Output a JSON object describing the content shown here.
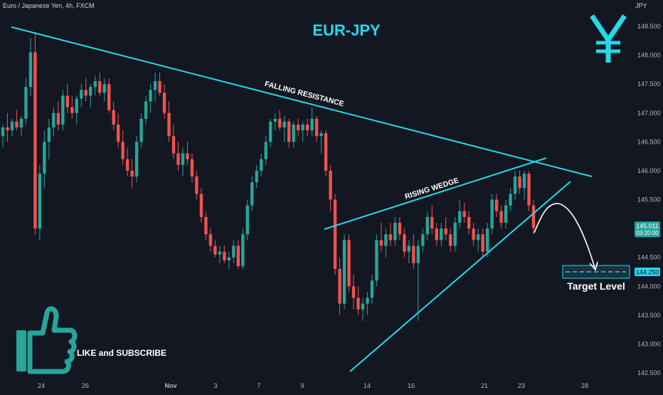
{
  "header": {
    "symbol_line": "Euro / Japanese Yen, 4h, FXCM",
    "currency_unit": "JPY"
  },
  "chart_data": {
    "type": "candlestick",
    "title": "EUR-JPY",
    "ylim": [
      142.4,
      148.7
    ],
    "y_ticks": [
      "148.500",
      "148.000",
      "147.500",
      "147.000",
      "146.500",
      "146.000",
      "145.500",
      "145.000",
      "144.500",
      "144.000",
      "143.500",
      "143.000",
      "142.500"
    ],
    "x_ticks": [
      "24",
      "26",
      "Nov",
      "3",
      "7",
      "9",
      "14",
      "16",
      "21",
      "23",
      "28"
    ],
    "current_price": "145.011",
    "countdown": "03:20:00",
    "target_price": "144.250",
    "colors": {
      "up": "#26a69a",
      "down": "#ef5350",
      "line": "#26d9e8",
      "text": "#ffffff"
    },
    "annotations": {
      "falling_resistance": "FALLING RESISTANCE",
      "rising_wedge": "RISING WEDGE",
      "target_level": "Target Level",
      "cta": "LIKE and SUBSCRIBE"
    },
    "trendlines": {
      "falling_resistance": [
        [
          148.6
        ],
        [
          145.92
        ]
      ],
      "wedge_top": [
        145.12,
        146.22
      ],
      "wedge_bottom": [
        142.55,
        145.85
      ]
    },
    "candles": [
      [
        146.6,
        146.8,
        146.4,
        146.75
      ],
      [
        146.75,
        147.0,
        146.5,
        146.7
      ],
      [
        146.7,
        146.9,
        146.6,
        146.85
      ],
      [
        146.85,
        147.05,
        146.7,
        146.75
      ],
      [
        146.75,
        146.95,
        146.6,
        146.9
      ],
      [
        146.9,
        147.6,
        146.8,
        147.45
      ],
      [
        147.45,
        148.3,
        147.3,
        148.05
      ],
      [
        148.05,
        148.4,
        144.9,
        145.0
      ],
      [
        145.0,
        146.1,
        144.8,
        145.95
      ],
      [
        145.95,
        146.7,
        145.7,
        146.5
      ],
      [
        146.5,
        146.9,
        146.2,
        146.75
      ],
      [
        146.75,
        147.1,
        146.6,
        147.0
      ],
      [
        147.0,
        147.2,
        146.7,
        146.8
      ],
      [
        146.8,
        147.4,
        146.7,
        147.3
      ],
      [
        147.3,
        147.5,
        147.0,
        147.1
      ],
      [
        147.1,
        147.3,
        146.9,
        147.0
      ],
      [
        147.0,
        147.3,
        146.8,
        147.25
      ],
      [
        147.25,
        147.5,
        147.1,
        147.4
      ],
      [
        147.4,
        147.6,
        147.2,
        147.3
      ],
      [
        147.3,
        147.5,
        147.1,
        147.45
      ],
      [
        147.45,
        147.65,
        147.3,
        147.55
      ],
      [
        147.55,
        147.7,
        147.3,
        147.35
      ],
      [
        147.35,
        147.6,
        147.2,
        147.5
      ],
      [
        147.5,
        147.6,
        147.0,
        147.05
      ],
      [
        147.05,
        147.2,
        146.7,
        146.8
      ],
      [
        146.8,
        147.0,
        146.4,
        146.5
      ],
      [
        146.5,
        146.7,
        146.1,
        146.2
      ],
      [
        146.2,
        146.4,
        145.9,
        146.0
      ],
      [
        146.0,
        146.2,
        145.7,
        145.9
      ],
      [
        145.9,
        146.6,
        145.8,
        146.5
      ],
      [
        146.5,
        147.0,
        146.4,
        146.9
      ],
      [
        146.9,
        147.3,
        146.8,
        147.2
      ],
      [
        147.2,
        147.5,
        147.0,
        147.4
      ],
      [
        147.4,
        147.7,
        147.2,
        147.55
      ],
      [
        147.55,
        147.7,
        147.3,
        147.35
      ],
      [
        147.35,
        147.5,
        146.9,
        147.0
      ],
      [
        147.0,
        147.2,
        146.5,
        146.6
      ],
      [
        146.6,
        146.8,
        146.2,
        146.3
      ],
      [
        146.3,
        146.5,
        146.0,
        146.1
      ],
      [
        146.1,
        146.4,
        145.9,
        146.3
      ],
      [
        146.3,
        146.5,
        146.1,
        146.2
      ],
      [
        146.2,
        146.3,
        145.8,
        145.9
      ],
      [
        145.9,
        146.0,
        145.5,
        145.6
      ],
      [
        145.6,
        145.7,
        145.1,
        145.2
      ],
      [
        145.2,
        145.3,
        144.8,
        144.9
      ],
      [
        144.9,
        145.0,
        144.6,
        144.7
      ],
      [
        144.7,
        144.8,
        144.5,
        144.55
      ],
      [
        144.55,
        144.7,
        144.4,
        144.6
      ],
      [
        144.6,
        144.7,
        144.4,
        144.45
      ],
      [
        144.45,
        144.6,
        144.3,
        144.5
      ],
      [
        144.5,
        144.8,
        144.4,
        144.7
      ],
      [
        144.7,
        144.8,
        144.3,
        144.35
      ],
      [
        144.35,
        145.0,
        144.3,
        144.9
      ],
      [
        144.9,
        145.5,
        144.8,
        145.4
      ],
      [
        145.4,
        145.9,
        145.3,
        145.8
      ],
      [
        145.8,
        146.1,
        145.7,
        146.0
      ],
      [
        146.0,
        146.3,
        145.9,
        146.2
      ],
      [
        146.2,
        146.6,
        146.1,
        146.5
      ],
      [
        146.5,
        146.9,
        146.4,
        146.85
      ],
      [
        146.85,
        147.0,
        146.7,
        146.9
      ],
      [
        146.9,
        147.05,
        146.7,
        146.75
      ],
      [
        146.75,
        146.95,
        146.5,
        146.85
      ],
      [
        146.85,
        146.9,
        146.4,
        146.5
      ],
      [
        146.5,
        146.85,
        146.4,
        146.8
      ],
      [
        146.8,
        146.9,
        146.6,
        146.7
      ],
      [
        146.7,
        146.85,
        146.5,
        146.8
      ],
      [
        146.8,
        146.9,
        146.6,
        146.7
      ],
      [
        146.7,
        147.1,
        146.6,
        146.9
      ],
      [
        146.9,
        146.95,
        146.5,
        146.6
      ],
      [
        146.6,
        146.7,
        146.3,
        146.65
      ],
      [
        146.65,
        146.7,
        145.9,
        146.0
      ],
      [
        146.0,
        146.1,
        145.3,
        145.5
      ],
      [
        145.5,
        145.6,
        144.2,
        144.3
      ],
      [
        144.3,
        144.5,
        143.5,
        143.7
      ],
      [
        143.7,
        144.9,
        143.6,
        144.8
      ],
      [
        144.8,
        144.9,
        143.9,
        144.0
      ],
      [
        144.0,
        144.2,
        143.6,
        143.8
      ],
      [
        143.8,
        144.0,
        143.5,
        143.6
      ],
      [
        143.6,
        143.8,
        143.4,
        143.7
      ],
      [
        143.7,
        143.9,
        143.5,
        143.8
      ],
      [
        143.8,
        144.2,
        143.7,
        144.1
      ],
      [
        144.1,
        144.9,
        144.0,
        144.8
      ],
      [
        144.8,
        145.1,
        144.6,
        144.7
      ],
      [
        144.7,
        145.0,
        144.5,
        144.9
      ],
      [
        144.9,
        145.1,
        144.7,
        144.8
      ],
      [
        144.8,
        145.2,
        144.7,
        145.1
      ],
      [
        145.1,
        145.2,
        144.8,
        144.9
      ],
      [
        144.9,
        145.0,
        144.5,
        144.6
      ],
      [
        144.6,
        144.8,
        144.4,
        144.7
      ],
      [
        144.7,
        144.9,
        144.3,
        144.4
      ],
      [
        144.4,
        144.8,
        143.4,
        144.7
      ],
      [
        144.7,
        145.0,
        144.6,
        144.9
      ],
      [
        144.9,
        145.3,
        144.8,
        145.2
      ],
      [
        145.2,
        145.4,
        144.9,
        145.0
      ],
      [
        145.0,
        145.1,
        144.7,
        144.8
      ],
      [
        144.8,
        145.1,
        144.7,
        145.0
      ],
      [
        145.0,
        145.2,
        144.8,
        144.9
      ],
      [
        144.9,
        145.0,
        144.6,
        144.7
      ],
      [
        144.7,
        145.2,
        144.6,
        145.1
      ],
      [
        145.1,
        145.5,
        145.0,
        145.3
      ],
      [
        145.3,
        145.45,
        145.1,
        145.2
      ],
      [
        145.2,
        145.3,
        144.9,
        145.0
      ],
      [
        145.0,
        145.1,
        144.7,
        144.8
      ],
      [
        144.8,
        145.0,
        144.6,
        144.9
      ],
      [
        144.9,
        145.0,
        144.5,
        144.6
      ],
      [
        144.6,
        145.1,
        144.5,
        145.0
      ],
      [
        145.0,
        145.6,
        144.9,
        145.5
      ],
      [
        145.5,
        145.6,
        145.2,
        145.3
      ],
      [
        145.3,
        145.4,
        145.0,
        145.1
      ],
      [
        145.1,
        145.5,
        145.0,
        145.4
      ],
      [
        145.4,
        145.7,
        145.3,
        145.6
      ],
      [
        145.6,
        146.0,
        145.5,
        145.9
      ],
      [
        145.9,
        146.0,
        145.6,
        145.7
      ],
      [
        145.7,
        146.0,
        145.5,
        145.95
      ],
      [
        145.95,
        146.0,
        145.3,
        145.4
      ],
      [
        145.4,
        145.5,
        144.9,
        145.01
      ]
    ]
  }
}
